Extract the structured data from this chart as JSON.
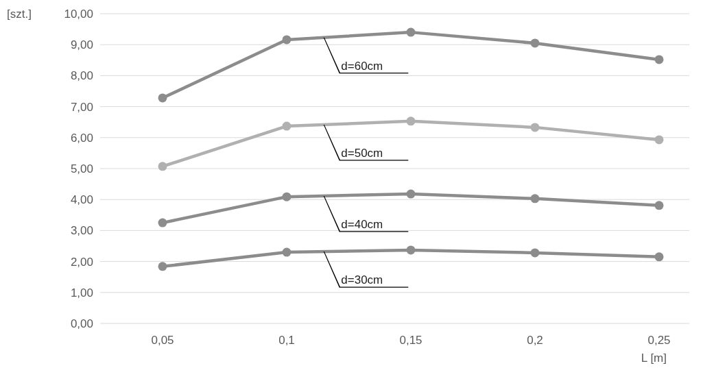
{
  "chart_data": {
    "type": "line",
    "ylabel": "[szt.]",
    "xlabel": "L [m]",
    "categories": [
      "0,05",
      "0,1",
      "0,15",
      "0,2",
      "0,25"
    ],
    "ylim": [
      0,
      10
    ],
    "yticks": [
      {
        "value": 0,
        "label": "0,00"
      },
      {
        "value": 1,
        "label": "1,00"
      },
      {
        "value": 2,
        "label": "2,00"
      },
      {
        "value": 3,
        "label": "3,00"
      },
      {
        "value": 4,
        "label": "4,00"
      },
      {
        "value": 5,
        "label": "5,00"
      },
      {
        "value": 6,
        "label": "6,00"
      },
      {
        "value": 7,
        "label": "7,00"
      },
      {
        "value": 8,
        "label": "8,00"
      },
      {
        "value": 9,
        "label": "9,00"
      },
      {
        "value": 10,
        "label": "10,00"
      }
    ],
    "grid": "y",
    "marker": "circle",
    "legend": false,
    "series": [
      {
        "name": "d=60cm",
        "color": "#8c8c8c",
        "values": [
          7.28,
          9.16,
          9.4,
          9.05,
          8.52
        ]
      },
      {
        "name": "d=50cm",
        "color": "#b0b0b0",
        "values": [
          5.07,
          6.37,
          6.53,
          6.33,
          5.93
        ]
      },
      {
        "name": "d=40cm",
        "color": "#8c8c8c",
        "values": [
          3.25,
          4.09,
          4.18,
          4.03,
          3.81
        ]
      },
      {
        "name": "d=30cm",
        "color": "#8c8c8c",
        "values": [
          1.84,
          2.3,
          2.37,
          2.28,
          2.15
        ]
      }
    ]
  }
}
